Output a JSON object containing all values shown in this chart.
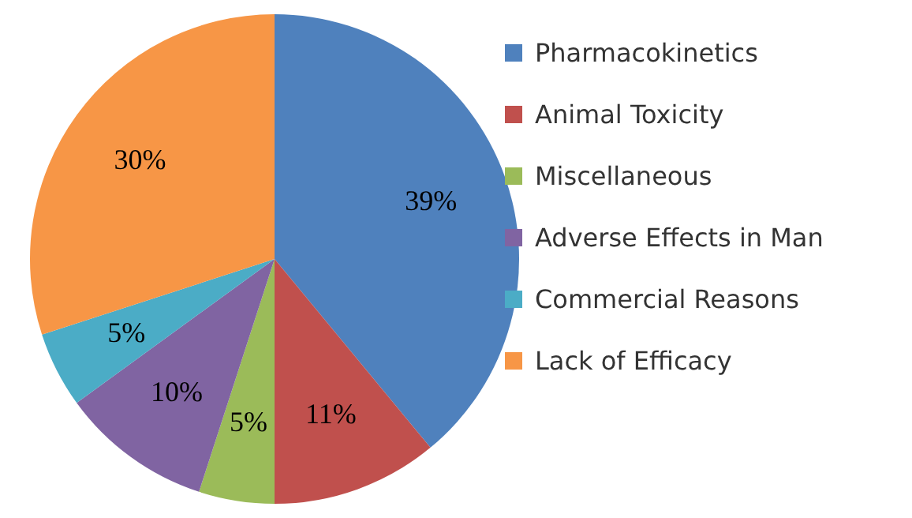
{
  "chart_data": {
    "type": "pie",
    "legend": "right",
    "categories": [
      "Pharmacokinetics",
      "Animal Toxicity",
      "Miscellaneous",
      "Adverse Effects in Man",
      "Commercial Reasons",
      "Lack of Efficacy"
    ],
    "values": [
      39,
      11,
      5,
      10,
      5,
      30
    ],
    "colors": [
      "#4f81bd",
      "#c0504d",
      "#9bbb59",
      "#8064a2",
      "#4bacc6",
      "#f79646"
    ],
    "value_labels": [
      "39%",
      "11%",
      "5%",
      "10%",
      "5%",
      "30%"
    ]
  }
}
